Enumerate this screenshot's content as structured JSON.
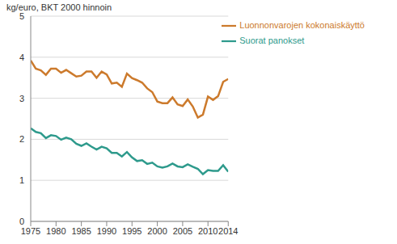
{
  "chart_data": {
    "type": "line",
    "ylabel": "kg/euro, BKT 2000 hinnoin",
    "x": [
      1975,
      1976,
      1977,
      1978,
      1979,
      1980,
      1981,
      1982,
      1983,
      1984,
      1985,
      1986,
      1987,
      1988,
      1989,
      1990,
      1991,
      1992,
      1993,
      1994,
      1995,
      1996,
      1997,
      1998,
      1999,
      2000,
      2001,
      2002,
      2003,
      2004,
      2005,
      2006,
      2007,
      2008,
      2009,
      2010,
      2011,
      2012,
      2013,
      2014
    ],
    "series": [
      {
        "name": "Luonnonvarojen kokonaiskäyttö",
        "color": "#cc7a2c",
        "values": [
          3.92,
          3.72,
          3.68,
          3.57,
          3.72,
          3.72,
          3.62,
          3.69,
          3.61,
          3.53,
          3.55,
          3.65,
          3.65,
          3.5,
          3.65,
          3.58,
          3.36,
          3.38,
          3.28,
          3.6,
          3.49,
          3.44,
          3.38,
          3.24,
          3.15,
          2.92,
          2.88,
          2.88,
          3.02,
          2.85,
          2.81,
          2.97,
          2.8,
          2.53,
          2.6,
          3.04,
          2.96,
          3.05,
          3.4,
          3.47
        ]
      },
      {
        "name": "Suorat panokset",
        "color": "#2e9a8c",
        "values": [
          2.27,
          2.18,
          2.15,
          2.03,
          2.1,
          2.08,
          1.99,
          2.04,
          2.0,
          1.89,
          1.84,
          1.9,
          1.82,
          1.75,
          1.82,
          1.78,
          1.67,
          1.67,
          1.58,
          1.69,
          1.56,
          1.47,
          1.49,
          1.4,
          1.43,
          1.34,
          1.31,
          1.34,
          1.41,
          1.34,
          1.32,
          1.39,
          1.33,
          1.28,
          1.15,
          1.25,
          1.23,
          1.23,
          1.37,
          1.21
        ]
      }
    ],
    "xlim": [
      1975,
      2014
    ],
    "xticks": [
      1975,
      1980,
      1985,
      1990,
      1995,
      2000,
      2005,
      2010,
      2014
    ],
    "ylim": [
      0,
      5
    ],
    "yticks": [
      0,
      1,
      2,
      3,
      4,
      5
    ],
    "grid": true,
    "legend": "upper right"
  }
}
